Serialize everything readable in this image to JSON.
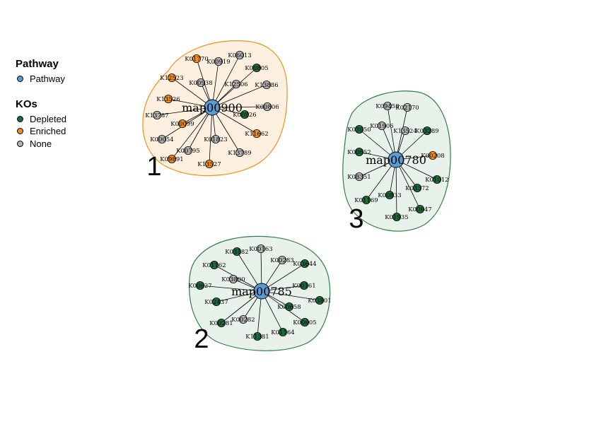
{
  "legend": {
    "pathway_title": "Pathway",
    "pathway_item": "Pathway",
    "kos_title": "KOs",
    "kos_items": [
      "Depleted",
      "Enriched",
      "None"
    ]
  },
  "colors": {
    "pathway": "#5b9bd5",
    "depleted": "#1e6b3c",
    "enriched": "#f0901a",
    "none": "#b3b3b3"
  },
  "clusters": [
    {
      "number": "1",
      "hub": "map00900",
      "style": "orange",
      "nodes": [
        {
          "label": "K01770",
          "type": "enriched"
        },
        {
          "label": "K00919",
          "type": "none"
        },
        {
          "label": "K06013",
          "type": "none"
        },
        {
          "label": "K00805",
          "type": "depleted"
        },
        {
          "label": "K12523",
          "type": "enriched"
        },
        {
          "label": "K00938",
          "type": "none"
        },
        {
          "label": "K12506",
          "type": "none"
        },
        {
          "label": "K13886",
          "type": "none"
        },
        {
          "label": "K13526",
          "type": "enriched"
        },
        {
          "label": "K00806",
          "type": "none"
        },
        {
          "label": "K13787",
          "type": "none"
        },
        {
          "label": "K00099",
          "type": "enriched"
        },
        {
          "label": "K00826",
          "type": "depleted"
        },
        {
          "label": "K11662",
          "type": "enriched"
        },
        {
          "label": "K00054",
          "type": "none"
        },
        {
          "label": "K01823",
          "type": "none"
        },
        {
          "label": "K00795",
          "type": "none"
        },
        {
          "label": "K09891",
          "type": "enriched"
        },
        {
          "label": "K13789",
          "type": "none"
        },
        {
          "label": "K13527",
          "type": "enriched"
        }
      ]
    },
    {
      "number": "3",
      "hub": "map00780",
      "style": "green",
      "nodes": [
        {
          "label": "K09458",
          "type": "none"
        },
        {
          "label": "K02170",
          "type": "none"
        },
        {
          "label": "K03650",
          "type": "depleted"
        },
        {
          "label": "K01906",
          "type": "none"
        },
        {
          "label": "K13524",
          "type": "none"
        },
        {
          "label": "K03289",
          "type": "depleted"
        },
        {
          "label": "K00652",
          "type": "depleted"
        },
        {
          "label": "K00208",
          "type": "enriched"
        },
        {
          "label": "K08351",
          "type": "none"
        },
        {
          "label": "K01012",
          "type": "depleted"
        },
        {
          "label": "K00833",
          "type": "depleted"
        },
        {
          "label": "K03372",
          "type": "depleted"
        },
        {
          "label": "K01169",
          "type": "depleted"
        },
        {
          "label": "K00647",
          "type": "depleted"
        },
        {
          "label": "K01935",
          "type": "depleted"
        }
      ]
    },
    {
      "number": "2",
      "hub": "map00785",
      "style": "green",
      "nodes": [
        {
          "label": "K03182",
          "type": "depleted"
        },
        {
          "label": "K00163",
          "type": "none"
        },
        {
          "label": "K00283",
          "type": "none"
        },
        {
          "label": "K01162",
          "type": "depleted"
        },
        {
          "label": "K03644",
          "type": "depleted"
        },
        {
          "label": "K03800",
          "type": "none"
        },
        {
          "label": "K00627",
          "type": "depleted"
        },
        {
          "label": "K00161",
          "type": "depleted"
        },
        {
          "label": "K02437",
          "type": "depleted"
        },
        {
          "label": "K00658",
          "type": "depleted"
        },
        {
          "label": "K03801",
          "type": "depleted"
        },
        {
          "label": "K00281",
          "type": "depleted"
        },
        {
          "label": "K00282",
          "type": "none"
        },
        {
          "label": "K00605",
          "type": "depleted"
        },
        {
          "label": "K01164",
          "type": "depleted"
        },
        {
          "label": "K11381",
          "type": "depleted"
        }
      ]
    }
  ]
}
